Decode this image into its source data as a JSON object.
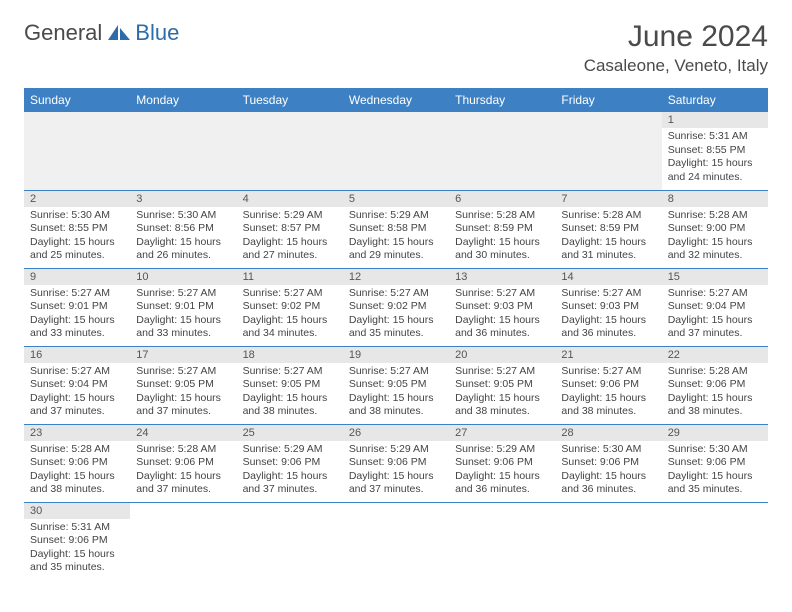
{
  "logo": {
    "part1": "General",
    "part2": "Blue"
  },
  "title": "June 2024",
  "subtitle": "Casaleone, Veneto, Italy",
  "colors": {
    "header_bg": "#3d80c3",
    "header_text": "#ffffff",
    "daynum_bg": "#e7e7e7",
    "row_border": "#3d80c3",
    "empty_bg": "#f0f0f0",
    "logo_blue": "#2d6ca8",
    "title_color": "#4a4a4a"
  },
  "weekdays": [
    "Sunday",
    "Monday",
    "Tuesday",
    "Wednesday",
    "Thursday",
    "Friday",
    "Saturday"
  ],
  "lead_blanks": 6,
  "trail_blanks": 6,
  "days": [
    {
      "n": 1,
      "sunrise": "5:31 AM",
      "sunset": "8:55 PM",
      "daylight": "15 hours and 24 minutes."
    },
    {
      "n": 2,
      "sunrise": "5:30 AM",
      "sunset": "8:55 PM",
      "daylight": "15 hours and 25 minutes."
    },
    {
      "n": 3,
      "sunrise": "5:30 AM",
      "sunset": "8:56 PM",
      "daylight": "15 hours and 26 minutes."
    },
    {
      "n": 4,
      "sunrise": "5:29 AM",
      "sunset": "8:57 PM",
      "daylight": "15 hours and 27 minutes."
    },
    {
      "n": 5,
      "sunrise": "5:29 AM",
      "sunset": "8:58 PM",
      "daylight": "15 hours and 29 minutes."
    },
    {
      "n": 6,
      "sunrise": "5:28 AM",
      "sunset": "8:59 PM",
      "daylight": "15 hours and 30 minutes."
    },
    {
      "n": 7,
      "sunrise": "5:28 AM",
      "sunset": "8:59 PM",
      "daylight": "15 hours and 31 minutes."
    },
    {
      "n": 8,
      "sunrise": "5:28 AM",
      "sunset": "9:00 PM",
      "daylight": "15 hours and 32 minutes."
    },
    {
      "n": 9,
      "sunrise": "5:27 AM",
      "sunset": "9:01 PM",
      "daylight": "15 hours and 33 minutes."
    },
    {
      "n": 10,
      "sunrise": "5:27 AM",
      "sunset": "9:01 PM",
      "daylight": "15 hours and 33 minutes."
    },
    {
      "n": 11,
      "sunrise": "5:27 AM",
      "sunset": "9:02 PM",
      "daylight": "15 hours and 34 minutes."
    },
    {
      "n": 12,
      "sunrise": "5:27 AM",
      "sunset": "9:02 PM",
      "daylight": "15 hours and 35 minutes."
    },
    {
      "n": 13,
      "sunrise": "5:27 AM",
      "sunset": "9:03 PM",
      "daylight": "15 hours and 36 minutes."
    },
    {
      "n": 14,
      "sunrise": "5:27 AM",
      "sunset": "9:03 PM",
      "daylight": "15 hours and 36 minutes."
    },
    {
      "n": 15,
      "sunrise": "5:27 AM",
      "sunset": "9:04 PM",
      "daylight": "15 hours and 37 minutes."
    },
    {
      "n": 16,
      "sunrise": "5:27 AM",
      "sunset": "9:04 PM",
      "daylight": "15 hours and 37 minutes."
    },
    {
      "n": 17,
      "sunrise": "5:27 AM",
      "sunset": "9:05 PM",
      "daylight": "15 hours and 37 minutes."
    },
    {
      "n": 18,
      "sunrise": "5:27 AM",
      "sunset": "9:05 PM",
      "daylight": "15 hours and 38 minutes."
    },
    {
      "n": 19,
      "sunrise": "5:27 AM",
      "sunset": "9:05 PM",
      "daylight": "15 hours and 38 minutes."
    },
    {
      "n": 20,
      "sunrise": "5:27 AM",
      "sunset": "9:05 PM",
      "daylight": "15 hours and 38 minutes."
    },
    {
      "n": 21,
      "sunrise": "5:27 AM",
      "sunset": "9:06 PM",
      "daylight": "15 hours and 38 minutes."
    },
    {
      "n": 22,
      "sunrise": "5:28 AM",
      "sunset": "9:06 PM",
      "daylight": "15 hours and 38 minutes."
    },
    {
      "n": 23,
      "sunrise": "5:28 AM",
      "sunset": "9:06 PM",
      "daylight": "15 hours and 38 minutes."
    },
    {
      "n": 24,
      "sunrise": "5:28 AM",
      "sunset": "9:06 PM",
      "daylight": "15 hours and 37 minutes."
    },
    {
      "n": 25,
      "sunrise": "5:29 AM",
      "sunset": "9:06 PM",
      "daylight": "15 hours and 37 minutes."
    },
    {
      "n": 26,
      "sunrise": "5:29 AM",
      "sunset": "9:06 PM",
      "daylight": "15 hours and 37 minutes."
    },
    {
      "n": 27,
      "sunrise": "5:29 AM",
      "sunset": "9:06 PM",
      "daylight": "15 hours and 36 minutes."
    },
    {
      "n": 28,
      "sunrise": "5:30 AM",
      "sunset": "9:06 PM",
      "daylight": "15 hours and 36 minutes."
    },
    {
      "n": 29,
      "sunrise": "5:30 AM",
      "sunset": "9:06 PM",
      "daylight": "15 hours and 35 minutes."
    },
    {
      "n": 30,
      "sunrise": "5:31 AM",
      "sunset": "9:06 PM",
      "daylight": "15 hours and 35 minutes."
    }
  ],
  "labels": {
    "sunrise": "Sunrise:",
    "sunset": "Sunset:",
    "daylight": "Daylight:"
  }
}
